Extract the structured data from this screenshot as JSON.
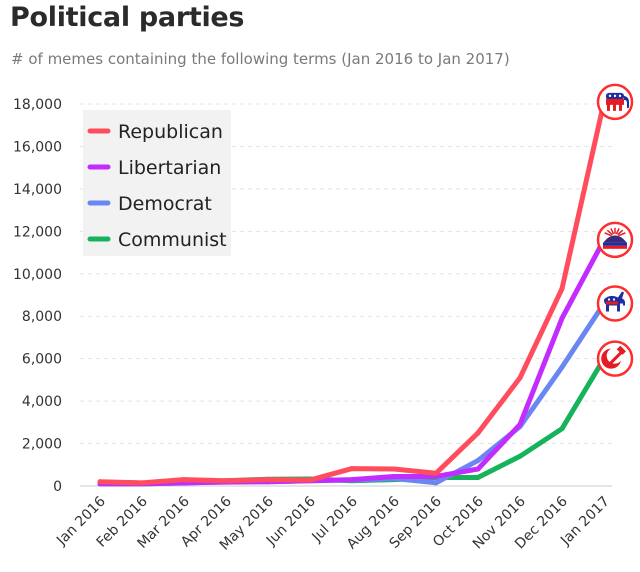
{
  "title": "Political parties",
  "subtitle": "# of memes containing the following terms (Jan 2016 to Jan 2017)",
  "chart_data": {
    "type": "line",
    "categories": [
      "Jan 2016",
      "Feb 2016",
      "Mar 2016",
      "Apr 2016",
      "May 2016",
      "Jun 2016",
      "Jul 2016",
      "Aug 2016",
      "Sep 2016",
      "Oct 2016",
      "Nov 2016",
      "Dec 2016",
      "Jan 2017"
    ],
    "ylim": [
      0,
      18000
    ],
    "yticks": [
      0,
      2000,
      4000,
      6000,
      8000,
      10000,
      12000,
      14000,
      16000,
      18000
    ],
    "ytick_labels": [
      "0",
      "2,000",
      "4,000",
      "6,000",
      "8,000",
      "10,000",
      "12,000",
      "14,000",
      "16,000",
      "18,000"
    ],
    "grid": "horizontal-dashed",
    "legend_position": "top-left",
    "series": [
      {
        "name": "Republican",
        "color": "#ff4d5e",
        "icon": "republican-elephant-icon",
        "values": [
          200,
          150,
          300,
          250,
          300,
          280,
          820,
          800,
          600,
          2500,
          5100,
          9300,
          18100
        ]
      },
      {
        "name": "Libertarian",
        "color": "#c22cff",
        "icon": "libertarian-porcupine-icon",
        "values": [
          100,
          100,
          150,
          180,
          200,
          250,
          300,
          450,
          450,
          800,
          2900,
          7900,
          11600
        ]
      },
      {
        "name": "Democrat",
        "color": "#6b86f2",
        "icon": "democrat-donkey-icon",
        "values": [
          100,
          120,
          150,
          200,
          200,
          250,
          280,
          350,
          150,
          1200,
          2800,
          5600,
          8600
        ]
      },
      {
        "name": "Communist",
        "color": "#17b35c",
        "icon": "hammer-sickle-icon",
        "values": [
          100,
          100,
          150,
          250,
          320,
          330,
          250,
          300,
          400,
          400,
          1400,
          2700,
          6000
        ]
      }
    ]
  }
}
